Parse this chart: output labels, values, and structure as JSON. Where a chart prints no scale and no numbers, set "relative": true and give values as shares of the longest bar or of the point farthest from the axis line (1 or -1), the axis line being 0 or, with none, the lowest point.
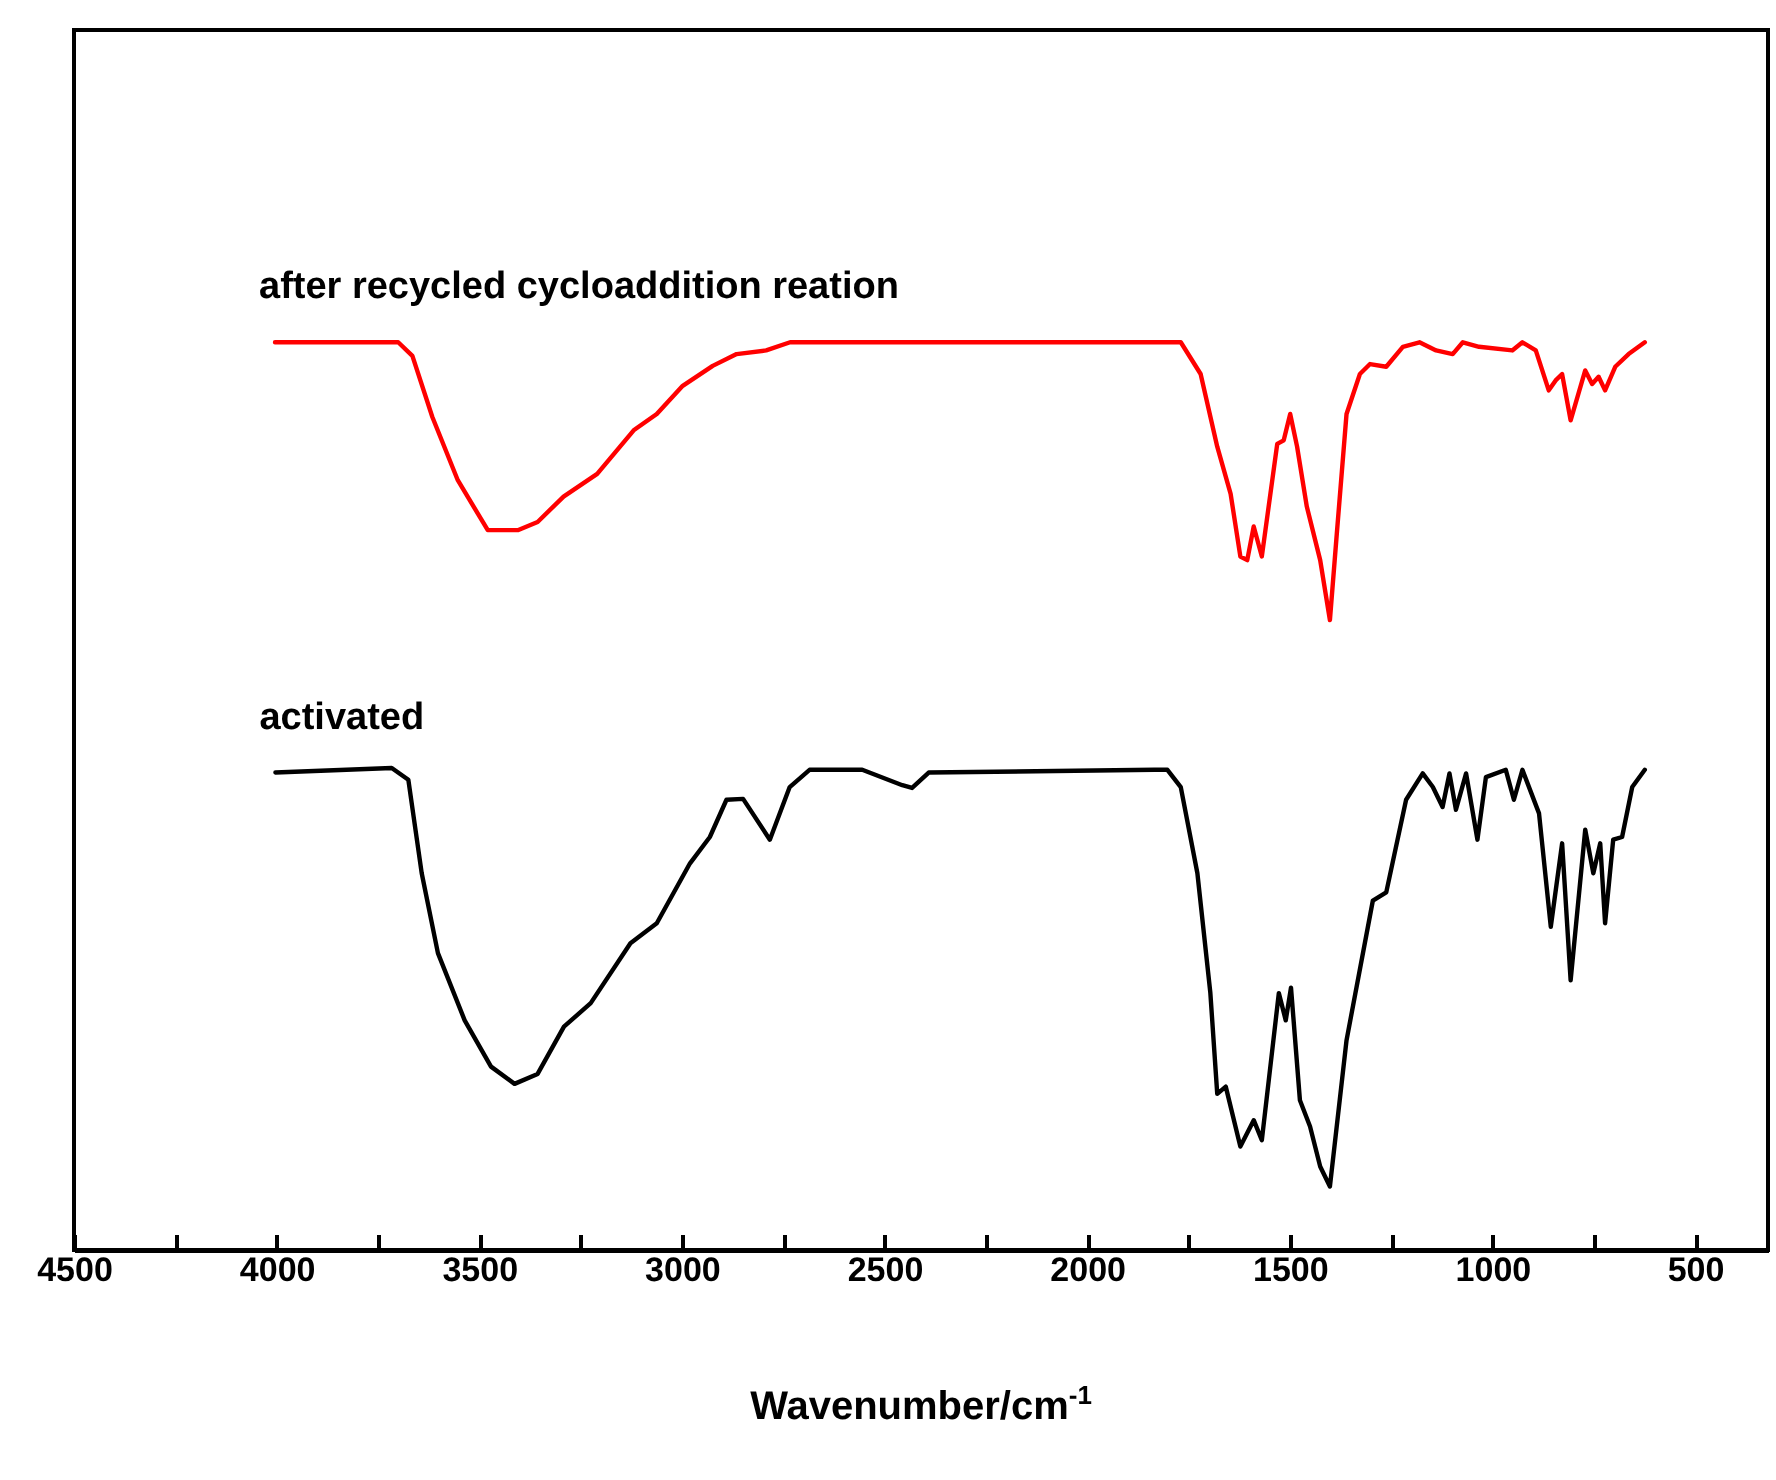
{
  "chart_data": {
    "type": "line",
    "relative": true,
    "xlabel": "Wavenumber/cm$^{-1}$",
    "xlim": [
      4500,
      320
    ],
    "xticks": [
      4500,
      {
        "value": 4250,
        "label": null
      },
      4000,
      {
        "value": 3750,
        "label": null
      },
      3500,
      {
        "value": 3250,
        "label": null
      },
      3000,
      {
        "value": 2750,
        "label": null
      },
      2500,
      {
        "value": 2250,
        "label": null
      },
      2000,
      {
        "value": 1750,
        "label": null
      },
      1500,
      {
        "value": 1250,
        "label": null
      },
      1000,
      {
        "value": 750,
        "label": null
      },
      500
    ],
    "line_style": "solid",
    "marker": "none",
    "series": [
      {
        "name": "after recycled cycloaddition reation",
        "color": "#ff0000",
        "x": [
          4004,
          3700,
          3665,
          3616,
          3553,
          3479,
          3405,
          3356,
          3292,
          3209,
          3119,
          3062,
          2998,
          2924,
          2865,
          2792,
          2733,
          1883,
          1769,
          1720,
          1679,
          1646,
          1622,
          1605,
          1589,
          1569,
          1531,
          1515,
          1499,
          1482,
          1458,
          1425,
          1401,
          1384,
          1360,
          1327,
          1302,
          1262,
          1221,
          1180,
          1139,
          1098,
          1073,
          1033,
          951,
          926,
          893,
          861,
          844,
          828,
          807,
          771,
          754,
          738,
          722,
          697,
          664,
          624
        ],
        "values": [
          1,
          1,
          0.985,
          0.918,
          0.848,
          0.793,
          0.793,
          0.802,
          0.83,
          0.855,
          0.903,
          0.921,
          0.952,
          0.974,
          0.987,
          0.991,
          1,
          1,
          1,
          0.965,
          0.885,
          0.833,
          0.764,
          0.76,
          0.797,
          0.764,
          0.888,
          0.892,
          0.921,
          0.885,
          0.819,
          0.76,
          0.694,
          0.789,
          0.921,
          0.965,
          0.976,
          0.973,
          0.995,
          1,
          0.991,
          0.987,
          1,
          0.995,
          0.991,
          1,
          0.991,
          0.947,
          0.958,
          0.965,
          0.914,
          0.969,
          0.954,
          0.962,
          0.947,
          0.973,
          0.987,
          1
        ]
      },
      {
        "name": "activated",
        "color": "#000000",
        "x": [
          4003,
          3716,
          3675,
          3642,
          3602,
          3536,
          3471,
          3413,
          3356,
          3291,
          3225,
          3127,
          3062,
          2980,
          2931,
          2890,
          2849,
          2783,
          2734,
          2685,
          2555,
          2456,
          2432,
          2391,
          1834,
          1802,
          1769,
          1728,
          1696,
          1679,
          1658,
          1622,
          1589,
          1569,
          1527,
          1510,
          1497,
          1475,
          1450,
          1425,
          1401,
          1360,
          1295,
          1262,
          1213,
          1172,
          1147,
          1123,
          1106,
          1090,
          1065,
          1037,
          1016,
          967,
          947,
          926,
          885,
          856,
          828,
          807,
          771,
          751,
          734,
          722,
          702,
          680,
          655,
          624
        ],
        "values": [
          0.526,
          0.531,
          0.518,
          0.415,
          0.327,
          0.253,
          0.202,
          0.183,
          0.194,
          0.246,
          0.272,
          0.338,
          0.36,
          0.426,
          0.455,
          0.496,
          0.497,
          0.452,
          0.51,
          0.529,
          0.529,
          0.512,
          0.509,
          0.526,
          0.529,
          0.529,
          0.51,
          0.415,
          0.283,
          0.172,
          0.18,
          0.114,
          0.143,
          0.121,
          0.283,
          0.253,
          0.289,
          0.165,
          0.136,
          0.092,
          0.07,
          0.231,
          0.385,
          0.394,
          0.496,
          0.525,
          0.51,
          0.488,
          0.525,
          0.485,
          0.525,
          0.452,
          0.521,
          0.529,
          0.496,
          0.529,
          0.481,
          0.356,
          0.448,
          0.297,
          0.463,
          0.415,
          0.448,
          0.36,
          0.452,
          0.455,
          0.51,
          0.529
        ]
      }
    ]
  }
}
